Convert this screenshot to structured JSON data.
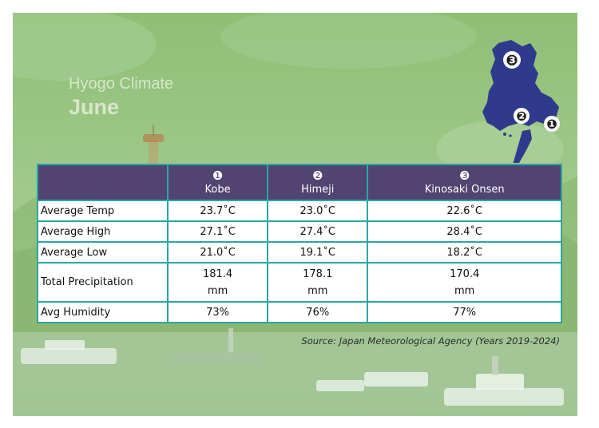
{
  "title": {
    "line1": "Hyogo Climate",
    "line2": "June"
  },
  "map": {
    "markers": [
      "❸",
      "❷",
      "❶"
    ],
    "colors": {
      "land": "#2f3a8c",
      "marker_fill": "#ffffff"
    }
  },
  "table": {
    "columns": [
      {
        "num": "❶",
        "name": "Kobe"
      },
      {
        "num": "❷",
        "name": "Himeji"
      },
      {
        "num": "❸",
        "name": "Kinosaki Onsen"
      }
    ],
    "rows": [
      {
        "label": "Average Temp",
        "values": [
          "23.7˚C",
          "23.0˚C",
          "22.6˚C"
        ]
      },
      {
        "label": "Average High",
        "values": [
          "27.1˚C",
          "27.4˚C",
          "28.4˚C"
        ]
      },
      {
        "label": "Average Low",
        "values": [
          "21.0˚C",
          "19.1˚C",
          "18.2˚C"
        ]
      },
      {
        "label": "Total Precipitation",
        "values": [
          [
            "181.4",
            "mm"
          ],
          [
            "178.1",
            "mm"
          ],
          [
            "170.4",
            "mm"
          ]
        ]
      },
      {
        "label": "Avg Humidity",
        "values": [
          "73%",
          "76%",
          "77%"
        ]
      }
    ]
  },
  "source": "Source: Japan Meteorological Agency (Years 2019-2024)",
  "colors": {
    "header_bg": "#524470",
    "border": "#2aa6a6",
    "background": "#9cc58a"
  }
}
